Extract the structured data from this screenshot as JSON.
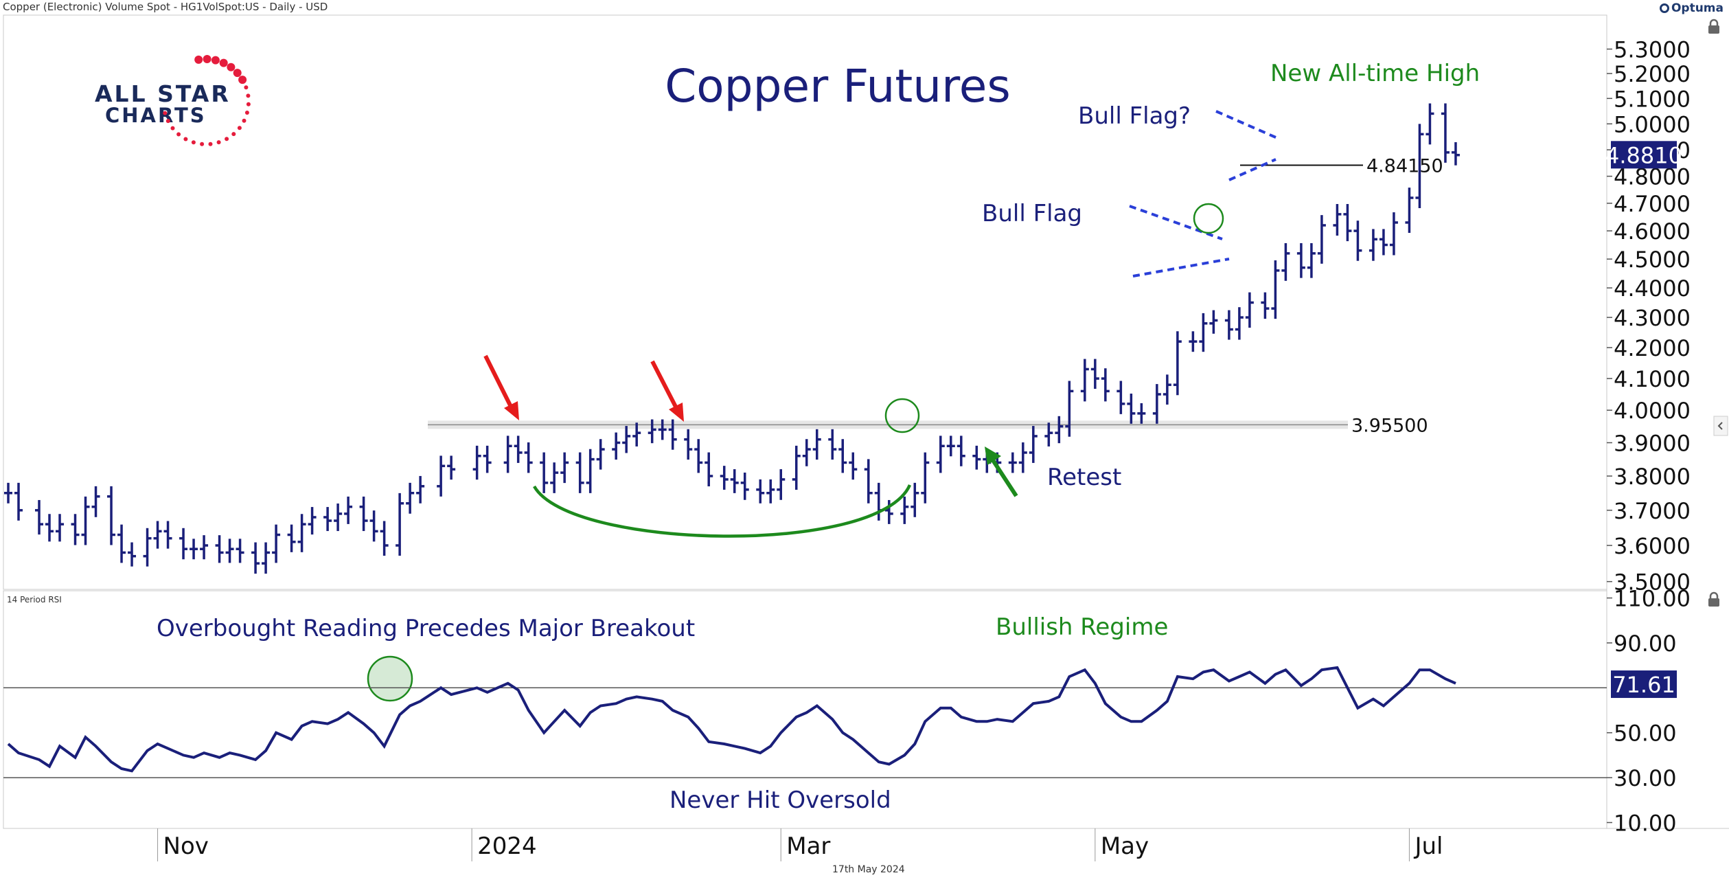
{
  "header": {
    "instrument": "Copper (Electronic) Volume Spot - HG1VolSpot:US - Daily - USD",
    "brand": "Optuma",
    "footer_date": "17th May 2024",
    "rsi_label": "14 Period RSI"
  },
  "logo": {
    "line1": "ALL STAR",
    "line2": "CHARTS"
  },
  "colors": {
    "series": "#1a1f7a",
    "annotation_blue": "#1a1f7a",
    "annotation_green": "#1d8a1d",
    "arrow_red": "#e51c1c",
    "flag_dash": "#2a3fd8",
    "price_box": "#1a1f7a"
  },
  "chart_data": [
    {
      "type": "ohlc",
      "title": "Copper Futures",
      "y_ticks": [
        "5.3000",
        "5.2000",
        "5.1000",
        "5.0000",
        "4.9000",
        "4.8000",
        "4.7000",
        "4.6000",
        "4.5000",
        "4.4000",
        "4.3000",
        "4.2000",
        "4.1000",
        "4.0000",
        "3.9000",
        "3.8000",
        "3.7000",
        "3.6000",
        "3.5000"
      ],
      "ylim": [
        3.49,
        5.39
      ],
      "scale": "log",
      "x_ticks": [
        "Nov",
        "2024",
        "Mar",
        "May",
        "Jul"
      ],
      "x_tick_dates": [
        "2023-11-01",
        "2024-01-01",
        "2024-03-01",
        "2024-05-01",
        "2024-07-01"
      ],
      "xlim": [
        "2023-10-03",
        "2024-08-07"
      ],
      "last_price": "4.8810",
      "levels": [
        {
          "value": 3.955,
          "label": "3.95500"
        },
        {
          "value": 4.8415,
          "label": "4.84150"
        }
      ],
      "annotations": [
        "Bull Flag?",
        "New All-time High",
        "Bull Flag",
        "Retest"
      ],
      "close": [
        [
          "2023-10-03",
          3.75
        ],
        [
          "2023-10-05",
          3.7
        ],
        [
          "2023-10-09",
          3.66
        ],
        [
          "2023-10-11",
          3.64
        ],
        [
          "2023-10-13",
          3.66
        ],
        [
          "2023-10-16",
          3.63
        ],
        [
          "2023-10-18",
          3.71
        ],
        [
          "2023-10-20",
          3.74
        ],
        [
          "2023-10-23",
          3.63
        ],
        [
          "2023-10-25",
          3.58
        ],
        [
          "2023-10-27",
          3.57
        ],
        [
          "2023-10-30",
          3.62
        ],
        [
          "2023-11-01",
          3.64
        ],
        [
          "2023-11-03",
          3.62
        ],
        [
          "2023-11-06",
          3.59
        ],
        [
          "2023-11-08",
          3.59
        ],
        [
          "2023-11-10",
          3.6
        ],
        [
          "2023-11-13",
          3.58
        ],
        [
          "2023-11-15",
          3.59
        ],
        [
          "2023-11-17",
          3.58
        ],
        [
          "2023-11-20",
          3.55
        ],
        [
          "2023-11-22",
          3.58
        ],
        [
          "2023-11-24",
          3.63
        ],
        [
          "2023-11-27",
          3.61
        ],
        [
          "2023-11-29",
          3.66
        ],
        [
          "2023-12-01",
          3.68
        ],
        [
          "2023-12-04",
          3.67
        ],
        [
          "2023-12-06",
          3.69
        ],
        [
          "2023-12-08",
          3.71
        ],
        [
          "2023-12-11",
          3.67
        ],
        [
          "2023-12-13",
          3.64
        ],
        [
          "2023-12-15",
          3.6
        ],
        [
          "2023-12-18",
          3.72
        ],
        [
          "2023-12-20",
          3.75
        ],
        [
          "2023-12-22",
          3.77
        ],
        [
          "2023-12-26",
          3.83
        ],
        [
          "2023-12-28",
          3.82
        ],
        [
          "2024-01-02",
          3.86
        ],
        [
          "2024-01-04",
          3.84
        ],
        [
          "2024-01-08",
          3.89
        ],
        [
          "2024-01-10",
          3.87
        ],
        [
          "2024-01-12",
          3.84
        ],
        [
          "2024-01-15",
          3.78
        ],
        [
          "2024-01-17",
          3.81
        ],
        [
          "2024-01-19",
          3.84
        ],
        [
          "2024-01-22",
          3.78
        ],
        [
          "2024-01-24",
          3.85
        ],
        [
          "2024-01-26",
          3.88
        ],
        [
          "2024-01-29",
          3.9
        ],
        [
          "2024-01-31",
          3.92
        ],
        [
          "2024-02-02",
          3.93
        ],
        [
          "2024-02-05",
          3.94
        ],
        [
          "2024-02-07",
          3.94
        ],
        [
          "2024-02-09",
          3.91
        ],
        [
          "2024-02-12",
          3.88
        ],
        [
          "2024-02-14",
          3.84
        ],
        [
          "2024-02-16",
          3.8
        ],
        [
          "2024-02-19",
          3.79
        ],
        [
          "2024-02-21",
          3.78
        ],
        [
          "2024-02-23",
          3.76
        ],
        [
          "2024-02-26",
          3.75
        ],
        [
          "2024-02-28",
          3.76
        ],
        [
          "2024-03-01",
          3.79
        ],
        [
          "2024-03-04",
          3.86
        ],
        [
          "2024-03-06",
          3.88
        ],
        [
          "2024-03-08",
          3.91
        ],
        [
          "2024-03-11",
          3.88
        ],
        [
          "2024-03-13",
          3.84
        ],
        [
          "2024-03-15",
          3.82
        ],
        [
          "2024-03-18",
          3.75
        ],
        [
          "2024-03-20",
          3.7
        ],
        [
          "2024-03-22",
          3.69
        ],
        [
          "2024-03-25",
          3.71
        ],
        [
          "2024-03-27",
          3.75
        ],
        [
          "2024-03-29",
          3.84
        ],
        [
          "2024-04-01",
          3.89
        ],
        [
          "2024-04-03",
          3.89
        ],
        [
          "2024-04-05",
          3.86
        ],
        [
          "2024-04-08",
          3.85
        ],
        [
          "2024-04-10",
          3.84
        ],
        [
          "2024-04-12",
          3.84
        ],
        [
          "2024-04-15",
          3.84
        ],
        [
          "2024-04-17",
          3.87
        ],
        [
          "2024-04-19",
          3.92
        ],
        [
          "2024-04-22",
          3.93
        ],
        [
          "2024-04-24",
          3.95
        ],
        [
          "2024-04-26",
          4.06
        ],
        [
          "2024-04-29",
          4.13
        ],
        [
          "2024-05-01",
          4.1
        ],
        [
          "2024-05-03",
          4.06
        ],
        [
          "2024-05-06",
          4.02
        ],
        [
          "2024-05-08",
          3.99
        ],
        [
          "2024-05-10",
          3.99
        ],
        [
          "2024-05-13",
          4.05
        ],
        [
          "2024-05-15",
          4.08
        ],
        [
          "2024-05-17",
          4.22
        ],
        [
          "2024-05-20",
          4.22
        ],
        [
          "2024-05-22",
          4.28
        ],
        [
          "2024-05-24",
          4.29
        ],
        [
          "2024-05-27",
          4.26
        ],
        [
          "2024-05-29",
          4.3
        ],
        [
          "2024-05-31",
          4.35
        ],
        [
          "2024-06-03",
          4.33
        ],
        [
          "2024-06-05",
          4.46
        ],
        [
          "2024-06-07",
          4.52
        ],
        [
          "2024-06-10",
          4.47
        ],
        [
          "2024-06-12",
          4.52
        ],
        [
          "2024-06-14",
          4.62
        ],
        [
          "2024-06-17",
          4.66
        ],
        [
          "2024-06-19",
          4.6
        ],
        [
          "2024-06-21",
          4.53
        ],
        [
          "2024-06-24",
          4.57
        ],
        [
          "2024-06-26",
          4.55
        ],
        [
          "2024-06-28",
          4.63
        ],
        [
          "2024-07-01",
          4.72
        ],
        [
          "2024-07-03",
          4.96
        ],
        [
          "2024-07-05",
          5.04
        ],
        [
          "2024-07-08",
          4.89
        ],
        [
          "2024-07-10",
          4.88
        ]
      ]
    },
    {
      "type": "line",
      "y_ticks": [
        "110.00",
        "90.00",
        "50.00",
        "30.00",
        "10.00"
      ],
      "ylim": [
        8,
        112
      ],
      "levels": [
        70,
        30
      ],
      "last_value": "71.61",
      "annotations": [
        "Overbought Reading Precedes Major Breakout",
        "Bullish Regime",
        "Never Hit Oversold"
      ],
      "rsi": [
        [
          "2023-10-03",
          45
        ],
        [
          "2023-10-05",
          41
        ],
        [
          "2023-10-09",
          38
        ],
        [
          "2023-10-11",
          35
        ],
        [
          "2023-10-13",
          44
        ],
        [
          "2023-10-16",
          39
        ],
        [
          "2023-10-18",
          48
        ],
        [
          "2023-10-20",
          44
        ],
        [
          "2023-10-23",
          37
        ],
        [
          "2023-10-25",
          34
        ],
        [
          "2023-10-27",
          33
        ],
        [
          "2023-10-30",
          42
        ],
        [
          "2023-11-01",
          45
        ],
        [
          "2023-11-03",
          43
        ],
        [
          "2023-11-06",
          40
        ],
        [
          "2023-11-08",
          39
        ],
        [
          "2023-11-10",
          41
        ],
        [
          "2023-11-13",
          39
        ],
        [
          "2023-11-15",
          41
        ],
        [
          "2023-11-17",
          40
        ],
        [
          "2023-11-20",
          38
        ],
        [
          "2023-11-22",
          42
        ],
        [
          "2023-11-24",
          50
        ],
        [
          "2023-11-27",
          47
        ],
        [
          "2023-11-29",
          53
        ],
        [
          "2023-12-01",
          55
        ],
        [
          "2023-12-04",
          54
        ],
        [
          "2023-12-06",
          56
        ],
        [
          "2023-12-08",
          59
        ],
        [
          "2023-12-11",
          54
        ],
        [
          "2023-12-13",
          50
        ],
        [
          "2023-12-15",
          44
        ],
        [
          "2023-12-18",
          58
        ],
        [
          "2023-12-20",
          62
        ],
        [
          "2023-12-22",
          64
        ],
        [
          "2023-12-26",
          70
        ],
        [
          "2023-12-28",
          67
        ],
        [
          "2024-01-02",
          70
        ],
        [
          "2024-01-04",
          68
        ],
        [
          "2024-01-08",
          72
        ],
        [
          "2024-01-10",
          69
        ],
        [
          "2024-01-12",
          60
        ],
        [
          "2024-01-15",
          50
        ],
        [
          "2024-01-17",
          55
        ],
        [
          "2024-01-19",
          60
        ],
        [
          "2024-01-22",
          53
        ],
        [
          "2024-01-24",
          59
        ],
        [
          "2024-01-26",
          62
        ],
        [
          "2024-01-29",
          63
        ],
        [
          "2024-01-31",
          65
        ],
        [
          "2024-02-02",
          66
        ],
        [
          "2024-02-05",
          65
        ],
        [
          "2024-02-07",
          64
        ],
        [
          "2024-02-09",
          60
        ],
        [
          "2024-02-12",
          57
        ],
        [
          "2024-02-14",
          52
        ],
        [
          "2024-02-16",
          46
        ],
        [
          "2024-02-19",
          45
        ],
        [
          "2024-02-21",
          44
        ],
        [
          "2024-02-23",
          43
        ],
        [
          "2024-02-26",
          41
        ],
        [
          "2024-02-28",
          44
        ],
        [
          "2024-03-01",
          50
        ],
        [
          "2024-03-04",
          57
        ],
        [
          "2024-03-06",
          59
        ],
        [
          "2024-03-08",
          62
        ],
        [
          "2024-03-11",
          56
        ],
        [
          "2024-03-13",
          50
        ],
        [
          "2024-03-15",
          47
        ],
        [
          "2024-03-18",
          41
        ],
        [
          "2024-03-20",
          37
        ],
        [
          "2024-03-22",
          36
        ],
        [
          "2024-03-25",
          40
        ],
        [
          "2024-03-27",
          45
        ],
        [
          "2024-03-29",
          55
        ],
        [
          "2024-04-01",
          61
        ],
        [
          "2024-04-03",
          61
        ],
        [
          "2024-04-05",
          57
        ],
        [
          "2024-04-08",
          55
        ],
        [
          "2024-04-10",
          55
        ],
        [
          "2024-04-12",
          56
        ],
        [
          "2024-04-15",
          55
        ],
        [
          "2024-04-17",
          59
        ],
        [
          "2024-04-19",
          63
        ],
        [
          "2024-04-22",
          64
        ],
        [
          "2024-04-24",
          66
        ],
        [
          "2024-04-26",
          75
        ],
        [
          "2024-04-29",
          78
        ],
        [
          "2024-05-01",
          72
        ],
        [
          "2024-05-03",
          63
        ],
        [
          "2024-05-06",
          57
        ],
        [
          "2024-05-08",
          55
        ],
        [
          "2024-05-10",
          55
        ],
        [
          "2024-05-13",
          60
        ],
        [
          "2024-05-15",
          64
        ],
        [
          "2024-05-17",
          75
        ],
        [
          "2024-05-20",
          74
        ],
        [
          "2024-05-22",
          77
        ],
        [
          "2024-05-24",
          78
        ],
        [
          "2024-05-27",
          73
        ],
        [
          "2024-05-29",
          75
        ],
        [
          "2024-05-31",
          77
        ],
        [
          "2024-06-03",
          72
        ],
        [
          "2024-06-05",
          76
        ],
        [
          "2024-06-07",
          78
        ],
        [
          "2024-06-10",
          71
        ],
        [
          "2024-06-12",
          74
        ],
        [
          "2024-06-14",
          78
        ],
        [
          "2024-06-17",
          79
        ],
        [
          "2024-06-19",
          70
        ],
        [
          "2024-06-21",
          61
        ],
        [
          "2024-06-24",
          65
        ],
        [
          "2024-06-26",
          62
        ],
        [
          "2024-06-28",
          66
        ],
        [
          "2024-07-01",
          72
        ],
        [
          "2024-07-03",
          78
        ],
        [
          "2024-07-05",
          78
        ],
        [
          "2024-07-08",
          74
        ],
        [
          "2024-07-10",
          72
        ]
      ]
    }
  ]
}
